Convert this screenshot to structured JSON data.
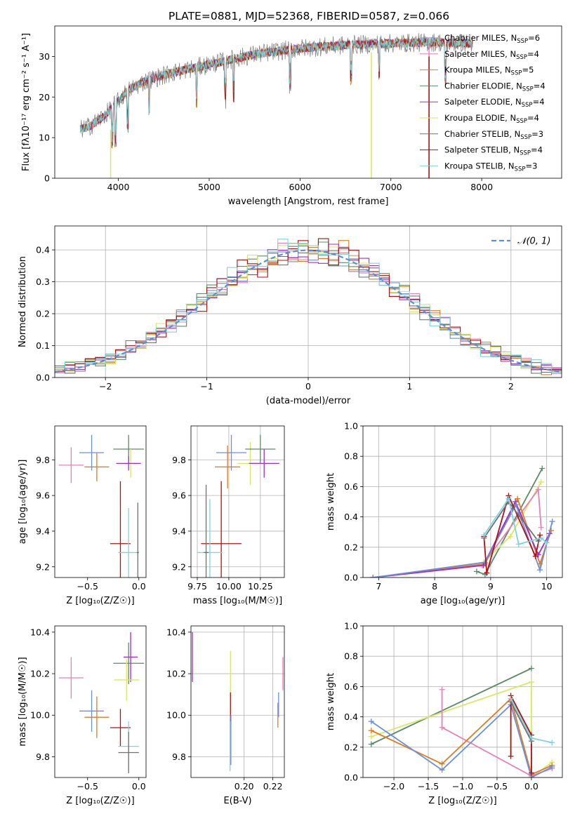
{
  "title": "PLATE=0881, MJD=52368, FIBERID=0587, z=0.066",
  "colors": {
    "chabrier_miles": "#6a8fdc",
    "salpeter_miles": "#e87fb8",
    "kroupa_miles": "#e07b1f",
    "chabrier_elodie": "#5a8a6a",
    "salpeter_elodie": "#a02cd0",
    "kroupa_elodie": "#d8e860",
    "chabrier_stelib": "#707070",
    "salpeter_stelib": "#b01010",
    "kroupa_stelib": "#7dd4dc",
    "grid": "#b0b0b0",
    "normal": "#5b8fd8"
  },
  "chart_data": [
    {
      "id": "spectrum",
      "type": "line",
      "title": "PLATE=0881, MJD=52368, FIBERID=0587, z=0.066",
      "xlabel": "wavelength [Angstrom, rest frame]",
      "ylabel": "Flux [fλ10⁻¹⁷ erg cm⁻² s⁻¹ A⁻¹]",
      "xlim": [
        3300,
        8880
      ],
      "ylim": [
        0,
        37.5
      ],
      "xticks": [
        4000,
        5000,
        6000,
        7000,
        8000
      ],
      "yticks": [
        0,
        10,
        20,
        30
      ],
      "grid": false,
      "legend_position": "top-right",
      "continuum": [
        [
          3580,
          12
        ],
        [
          3700,
          13
        ],
        [
          3850,
          15.5
        ],
        [
          4000,
          19
        ],
        [
          4100,
          21.5
        ],
        [
          4300,
          24
        ],
        [
          4600,
          26
        ],
        [
          5000,
          28
        ],
        [
          5500,
          30.5
        ],
        [
          6000,
          32
        ],
        [
          6500,
          32.8
        ],
        [
          7000,
          33.2
        ],
        [
          7500,
          33.5
        ],
        [
          7900,
          33.2
        ]
      ],
      "series": [
        {
          "name": "Chabrier MILES, N_SSP=6",
          "color_key": "chabrier_miles"
        },
        {
          "name": "Salpeter MILES, N_SSP=4",
          "color_key": "salpeter_miles"
        },
        {
          "name": "Kroupa MILES, N_SSP=5",
          "color_key": "kroupa_miles"
        },
        {
          "name": "Chabrier ELODIE, N_SSP=4",
          "color_key": "chabrier_elodie"
        },
        {
          "name": "Salpeter ELODIE, N_SSP=4",
          "color_key": "salpeter_elodie"
        },
        {
          "name": "Kroupa ELODIE, N_SSP=4",
          "color_key": "kroupa_elodie"
        },
        {
          "name": "Chabrier STELIB, N_SSP=3",
          "color_key": "chabrier_stelib"
        },
        {
          "name": "Salpeter STELIB, N_SSP=4",
          "color_key": "salpeter_stelib"
        },
        {
          "name": "Kroupa STELIB, N_SSP=3",
          "color_key": "kroupa_stelib"
        }
      ],
      "legend_labels": [
        {
          "pre": "Chabrier MILES, N",
          "sub": "SSP",
          "post": "=6"
        },
        {
          "pre": "Salpeter MILES, N",
          "sub": "SSP",
          "post": "=4"
        },
        {
          "pre": "Kroupa MILES, N",
          "sub": "SSP",
          "post": "=5"
        },
        {
          "pre": "Chabrier ELODIE, N",
          "sub": "SSP",
          "post": "=4"
        },
        {
          "pre": "Salpeter ELODIE, N",
          "sub": "SSP",
          "post": "=4"
        },
        {
          "pre": "Kroupa ELODIE, N",
          "sub": "SSP",
          "post": "=4"
        },
        {
          "pre": "Chabrier STELIB, N",
          "sub": "SSP",
          "post": "=3"
        },
        {
          "pre": "Salpeter STELIB, N",
          "sub": "SSP",
          "post": "=4"
        },
        {
          "pre": "Kroupa STELIB, N",
          "sub": "SSP",
          "post": "=3"
        }
      ]
    },
    {
      "id": "residuals",
      "type": "line",
      "xlabel": "(data-model)/error",
      "ylabel": "Normed distribution",
      "xlim": [
        -2.5,
        2.5
      ],
      "ylim": [
        0,
        0.475
      ],
      "xticks": [
        -2,
        -1,
        0,
        1,
        2
      ],
      "yticks": [
        0.0,
        0.1,
        0.2,
        0.3,
        0.4
      ],
      "grid": true,
      "legend": "N(0,1)",
      "legend_position": "top-right",
      "bin_width": 0.1,
      "step_series": [
        {
          "color_key": "chabrier_miles",
          "jitter": 0.012
        },
        {
          "color_key": "salpeter_miles",
          "jitter": 0.015
        },
        {
          "color_key": "kroupa_miles",
          "jitter": 0.02
        },
        {
          "color_key": "chabrier_elodie",
          "jitter": 0.02
        },
        {
          "color_key": "salpeter_elodie",
          "jitter": 0.015
        },
        {
          "color_key": "kroupa_elodie",
          "jitter": 0.022
        },
        {
          "color_key": "chabrier_stelib",
          "jitter": 0.015
        },
        {
          "color_key": "salpeter_stelib",
          "jitter": 0.018
        },
        {
          "color_key": "kroupa_stelib",
          "jitter": 0.02
        }
      ]
    },
    {
      "id": "age-vs-Z",
      "type": "scatter",
      "xlabel": "Z [log₁₀(Z/Z☉)]",
      "ylabel": "age [log₁₀(age/yr)]",
      "xlim": [
        -0.82,
        0.07
      ],
      "ylim": [
        9.14,
        9.99
      ],
      "xticks": [
        -0.5,
        0.0
      ],
      "yticks": [
        9.2,
        9.4,
        9.6,
        9.8
      ],
      "grid": false,
      "points": [
        {
          "color_key": "salpeter_miles",
          "x": -0.66,
          "xe": 0.12,
          "y": 9.77,
          "ye": 0.1
        },
        {
          "color_key": "chabrier_miles",
          "x": -0.46,
          "xe": 0.12,
          "y": 9.84,
          "ye": 0.1
        },
        {
          "color_key": "kroupa_miles",
          "x": -0.41,
          "xe": 0.12,
          "y": 9.76,
          "ye": 0.08
        },
        {
          "color_key": "chabrier_elodie",
          "x": -0.1,
          "xe": 0.15,
          "y": 9.86,
          "ye": 0.08
        },
        {
          "color_key": "kroupa_elodie",
          "x": -0.08,
          "xe": 0.07,
          "y": 9.78,
          "ye": 0.08
        },
        {
          "color_key": "salpeter_elodie",
          "x": -0.1,
          "xe": 0.12,
          "y": 9.78,
          "ye": 0.04
        },
        {
          "color_key": "salpeter_stelib",
          "x": -0.18,
          "xe": 0.1,
          "y": 9.33,
          "ye": 0.35
        },
        {
          "color_key": "kroupa_stelib",
          "x": -0.1,
          "xe": 0.1,
          "y": 9.28,
          "ye": 0.25
        },
        {
          "color_key": "chabrier_stelib",
          "x": -0.01,
          "xe": 0.01,
          "y": 9.28,
          "ye": 0.28
        }
      ]
    },
    {
      "id": "age-vs-mass",
      "type": "scatter",
      "xlabel": "mass [log₁₀(M/M☉)]",
      "ylabel": "",
      "xlim": [
        9.7,
        10.44
      ],
      "ylim": [
        9.14,
        9.99
      ],
      "xticks": [
        9.75,
        10.0,
        10.25
      ],
      "yticks": [
        9.2,
        9.4,
        9.6,
        9.8
      ],
      "grid": true,
      "points": [
        {
          "color_key": "chabrier_miles",
          "x": 10.02,
          "xe": 0.12,
          "y": 9.84,
          "ye": 0.1
        },
        {
          "color_key": "kroupa_miles",
          "x": 9.99,
          "xe": 0.1,
          "y": 9.76,
          "ye": 0.12
        },
        {
          "color_key": "kroupa_elodie",
          "x": 10.17,
          "xe": 0.1,
          "y": 9.78,
          "ye": 0.12
        },
        {
          "color_key": "chabrier_elodie",
          "x": 10.25,
          "xe": 0.12,
          "y": 9.86,
          "ye": 0.08
        },
        {
          "color_key": "salpeter_elodie",
          "x": 10.28,
          "xe": 0.12,
          "y": 9.78,
          "ye": 0.08
        },
        {
          "color_key": "salpeter_stelib",
          "x": 9.94,
          "xe": 0.16,
          "y": 9.33,
          "ye": 0.35
        },
        {
          "color_key": "kroupa_stelib",
          "x": 9.85,
          "xe": 0.1,
          "y": 9.28,
          "ye": 0.3
        },
        {
          "color_key": "chabrier_stelib",
          "x": 9.82,
          "xe": 0.02,
          "y": 9.28,
          "ye": 0.38
        }
      ]
    },
    {
      "id": "weight-vs-age",
      "type": "line",
      "xlabel": "age [log₁₀(age/yr)]",
      "ylabel": "mass weight",
      "xlim": [
        6.72,
        10.28
      ],
      "ylim": [
        0,
        1
      ],
      "xticks": [
        7,
        8,
        9,
        10
      ],
      "yticks": [
        0.0,
        0.2,
        0.4,
        0.6,
        0.8,
        1.0
      ],
      "grid": true,
      "series": [
        {
          "color_key": "chabrier_elodie",
          "x": [
            8.75,
            8.9,
            9.92
          ],
          "y": [
            0.04,
            0.02,
            0.72
          ]
        },
        {
          "color_key": "kroupa_elodie",
          "x": [
            6.9,
            8.87,
            9.35,
            9.9
          ],
          "y": [
            0.0,
            0.1,
            0.27,
            0.63
          ]
        },
        {
          "color_key": "salpeter_miles",
          "x": [
            6.9,
            8.85,
            9.85,
            9.9
          ],
          "y": [
            0.0,
            0.08,
            0.58,
            0.33
          ]
        },
        {
          "color_key": "kroupa_miles",
          "x": [
            6.9,
            8.9,
            9.48,
            9.88,
            10.08
          ],
          "y": [
            0.0,
            0.09,
            0.52,
            0.09,
            0.31
          ]
        },
        {
          "color_key": "salpeter_elodie",
          "x": [
            6.9,
            8.87,
            9.44,
            9.85,
            10.05
          ],
          "y": [
            0.0,
            0.08,
            0.5,
            0.15,
            0.29
          ]
        },
        {
          "color_key": "chabrier_miles",
          "x": [
            6.9,
            8.9,
            9.45,
            9.88,
            10.1
          ],
          "y": [
            0.0,
            0.1,
            0.48,
            0.05,
            0.37
          ]
        },
        {
          "color_key": "salpeter_stelib",
          "x": [
            8.88,
            8.93,
            9.32,
            9.8,
            9.88
          ],
          "y": [
            0.27,
            0.03,
            0.54,
            0.14,
            0.28
          ]
        },
        {
          "color_key": "chabrier_stelib",
          "x": [
            8.88,
            9.32,
            9.85
          ],
          "y": [
            0.26,
            0.5,
            0.24
          ]
        },
        {
          "color_key": "kroupa_stelib",
          "x": [
            8.88,
            9.32,
            9.5,
            9.9,
            10.0
          ],
          "y": [
            0.28,
            0.52,
            0.22,
            0.26,
            0.23
          ]
        }
      ]
    },
    {
      "id": "mass-vs-Z",
      "type": "scatter",
      "xlabel": "Z [log₁₀(Z/Z☉)]",
      "ylabel": "mass [log₁₀(M/M☉)]",
      "xlim": [
        -0.82,
        0.07
      ],
      "ylim": [
        9.7,
        10.43
      ],
      "xticks": [
        -0.5,
        0.0
      ],
      "yticks": [
        9.8,
        10.0,
        10.2,
        10.4
      ],
      "grid": false,
      "points": [
        {
          "color_key": "salpeter_miles",
          "x": -0.66,
          "xe": 0.12,
          "y": 10.18,
          "ye": 0.1
        },
        {
          "color_key": "chabrier_miles",
          "x": -0.46,
          "xe": 0.12,
          "y": 10.02,
          "ye": 0.1
        },
        {
          "color_key": "kroupa_miles",
          "x": -0.41,
          "xe": 0.12,
          "y": 9.99,
          "ye": 0.1
        },
        {
          "color_key": "chabrier_elodie",
          "x": -0.1,
          "xe": 0.15,
          "y": 10.25,
          "ye": 0.1
        },
        {
          "color_key": "salpeter_elodie",
          "x": -0.08,
          "xe": 0.07,
          "y": 10.28,
          "ye": 0.12
        },
        {
          "color_key": "kroupa_elodie",
          "x": -0.12,
          "xe": 0.12,
          "y": 10.17,
          "ye": 0.1
        },
        {
          "color_key": "salpeter_stelib",
          "x": -0.18,
          "xe": 0.1,
          "y": 9.94,
          "ye": 0.09
        },
        {
          "color_key": "kroupa_stelib",
          "x": -0.1,
          "xe": 0.1,
          "y": 9.85,
          "ye": 0.12
        },
        {
          "color_key": "chabrier_stelib",
          "x": -0.1,
          "xe": 0.1,
          "y": 9.82,
          "ye": 0.1
        }
      ]
    },
    {
      "id": "mass-vs-ebv",
      "type": "scatter",
      "xlabel": "E(B-V)",
      "ylabel": "",
      "xlim": [
        0.163,
        0.228
      ],
      "ylim": [
        9.7,
        10.43
      ],
      "xticks": [
        0.2,
        0.22
      ],
      "yticks": [
        9.8,
        10.0,
        10.2,
        10.4
      ],
      "grid": true,
      "points": [
        {
          "color_key": "salpeter_elodie",
          "x": 0.164,
          "xe": 0,
          "y": 10.28,
          "ye": 0.12
        },
        {
          "color_key": "kroupa_elodie",
          "x": 0.1905,
          "xe": 0,
          "y": 10.17,
          "ye": 0.14
        },
        {
          "color_key": "salpeter_stelib",
          "x": 0.1905,
          "xe": 0,
          "y": 10.04,
          "ye": 0.07
        },
        {
          "color_key": "kroupa_stelib",
          "x": 0.1902,
          "xe": 0,
          "y": 9.85,
          "ye": 0.12
        },
        {
          "color_key": "chabrier_miles",
          "x": 0.1908,
          "xe": 0,
          "y": 9.88,
          "ye": 0.12
        },
        {
          "color_key": "kroupa_miles",
          "x": 0.2235,
          "xe": 0,
          "y": 10.0,
          "ye": 0.06
        },
        {
          "color_key": "chabrier_miles",
          "x": 0.224,
          "xe": 0,
          "y": 10.05,
          "ye": 0.06
        },
        {
          "color_key": "salpeter_miles",
          "x": 0.227,
          "xe": 0,
          "y": 10.2,
          "ye": 0.08
        }
      ]
    },
    {
      "id": "weight-vs-Z",
      "type": "line",
      "xlabel": "Z [log₁₀(Z/Z☉)]",
      "ylabel": "mass weight",
      "xlim": [
        -2.45,
        0.45
      ],
      "ylim": [
        0,
        1
      ],
      "xticks": [
        -2.0,
        -1.5,
        -1.0,
        -0.5,
        0.0
      ],
      "yticks": [
        0.0,
        0.2,
        0.4,
        0.6,
        0.8,
        1.0
      ],
      "grid": true,
      "series": [
        {
          "color_key": "chabrier_elodie",
          "x": [
            -2.33,
            0.0
          ],
          "y": [
            0.22,
            0.72
          ]
        },
        {
          "color_key": "kroupa_elodie",
          "x": [
            -2.33,
            0.0,
            0.0,
            0.3
          ],
          "y": [
            0.27,
            0.63,
            0.0,
            0.1
          ]
        },
        {
          "color_key": "salpeter_miles",
          "x": [
            -1.3,
            -1.3,
            0.0,
            0.3
          ],
          "y": [
            0.58,
            0.33,
            0.01,
            0.06
          ]
        },
        {
          "color_key": "kroupa_miles",
          "x": [
            -2.33,
            -1.3,
            -0.3,
            0.0,
            0.3
          ],
          "y": [
            0.31,
            0.09,
            0.52,
            0.02,
            0.08
          ]
        },
        {
          "color_key": "chabrier_miles",
          "x": [
            -2.33,
            -1.3,
            -0.3,
            0.0,
            0.3
          ],
          "y": [
            0.37,
            0.05,
            0.48,
            0.0,
            0.07
          ]
        },
        {
          "color_key": "salpeter_stelib",
          "x": [
            -0.3,
            -0.3,
            0.0,
            0.0
          ],
          "y": [
            0.14,
            0.54,
            0.28,
            0.03
          ]
        },
        {
          "color_key": "chabrier_stelib",
          "x": [
            -0.3,
            0.0
          ],
          "y": [
            0.5,
            0.24
          ]
        },
        {
          "color_key": "kroupa_stelib",
          "x": [
            -0.3,
            0.0,
            0.3
          ],
          "y": [
            0.52,
            0.26,
            0.23
          ]
        }
      ]
    }
  ]
}
